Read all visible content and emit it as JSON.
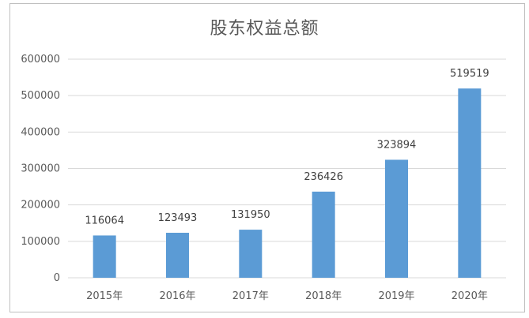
{
  "chart_data": {
    "type": "bar",
    "title": "股东权益总额",
    "categories": [
      "2015年",
      "2016年",
      "2017年",
      "2018年",
      "2019年",
      "2020年"
    ],
    "values": [
      116064,
      123493,
      131950,
      236426,
      323894,
      519519
    ],
    "data_labels": [
      "116064",
      "123493",
      "131950",
      "236426",
      "323894",
      "519519"
    ],
    "y_ticks": [
      "0",
      "100000",
      "200000",
      "300000",
      "400000",
      "500000",
      "600000"
    ],
    "ylim": [
      0,
      600000
    ],
    "xlabel": "",
    "ylabel": "",
    "grid": true,
    "bar_color": "#5b9bd5",
    "grid_color": "#d9d9d9"
  }
}
